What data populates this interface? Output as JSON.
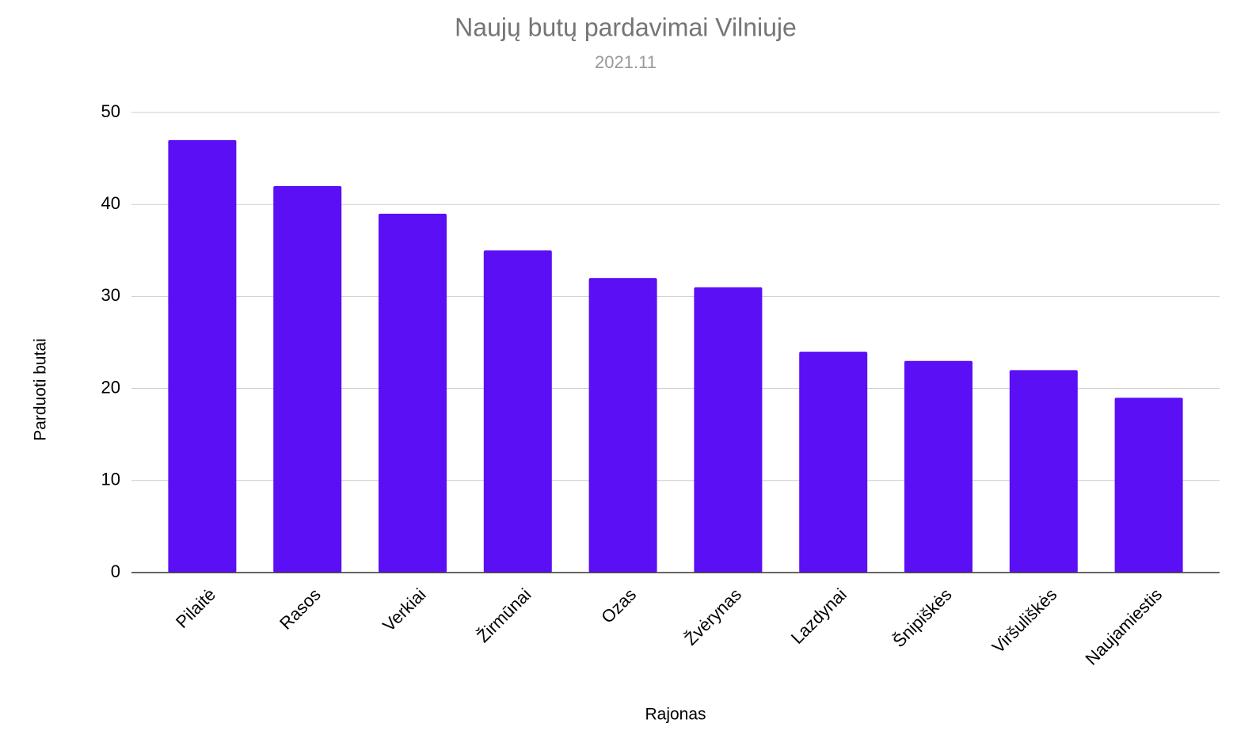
{
  "chart_data": {
    "type": "bar",
    "title": "Naujų butų pardavimai Vilniuje",
    "subtitle": "2021.11",
    "x_label": "Rajonas",
    "y_label": "Parduoti butai",
    "categories": [
      "Pilaitė",
      "Rasos",
      "Verkiai",
      "Žirmūnai",
      "Ozas",
      "Žvėrynas",
      "Lazdynai",
      "Šnipiškės",
      "Viršuliškės",
      "Naujamiestis"
    ],
    "values": [
      47,
      42,
      39,
      35,
      32,
      31,
      24,
      23,
      22,
      19
    ],
    "color": "#5b0ff5",
    "ylim": [
      0,
      50
    ],
    "yticks": [
      0,
      10,
      20,
      30,
      40,
      50
    ],
    "grid": true
  }
}
